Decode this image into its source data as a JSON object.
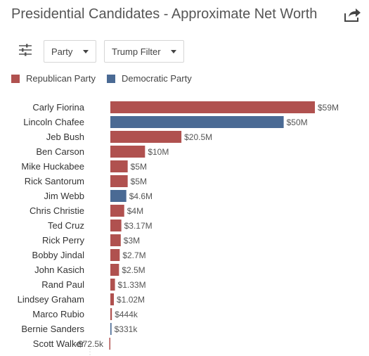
{
  "header": {
    "title": "Presidential Candidates - Approximate Net Worth",
    "share_icon": "share-icon"
  },
  "controls": {
    "filter_icon": "sliders-icon",
    "party_dropdown": "Party",
    "trump_dropdown": "Trump Filter"
  },
  "colors": {
    "republican": "#b0514f",
    "democratic": "#4a6a94"
  },
  "chart_data": {
    "type": "bar",
    "orientation": "horizontal",
    "title": "Presidential Candidates - Approximate Net Worth",
    "legend": [
      {
        "name": "Republican Party",
        "key": "R"
      },
      {
        "name": "Democratic Party",
        "key": "D"
      }
    ],
    "legend_position": "top-left",
    "categories": [
      "Carly Fiorina",
      "Lincoln Chafee",
      "Jeb Bush",
      "Ben Carson",
      "Mike Huckabee",
      "Rick Santorum",
      "Jim Webb",
      "Chris Christie",
      "Ted Cruz",
      "Rick Perry",
      "Bobby Jindal",
      "John Kasich",
      "Rand Paul",
      "Lindsey Graham",
      "Marco Rubio",
      "Bernie Sanders",
      "Scott Walker"
    ],
    "values": [
      59000000,
      50000000,
      20500000,
      10000000,
      5000000,
      5000000,
      4600000,
      4000000,
      3170000,
      3000000,
      2700000,
      2500000,
      1330000,
      1020000,
      444000,
      331000,
      -72500
    ],
    "value_labels": [
      "$59M",
      "$50M",
      "$20.5M",
      "$10M",
      "$5M",
      "$5M",
      "$4.6M",
      "$4M",
      "$3.17M",
      "$3M",
      "$2.7M",
      "$2.5M",
      "$1.33M",
      "$1.02M",
      "$444k",
      "$331k",
      "-$72.5k"
    ],
    "party": [
      "R",
      "D",
      "R",
      "R",
      "R",
      "R",
      "D",
      "R",
      "R",
      "R",
      "R",
      "R",
      "R",
      "R",
      "R",
      "D",
      "R"
    ],
    "xlim": [
      -10000000,
      60000000
    ],
    "grid": false
  }
}
